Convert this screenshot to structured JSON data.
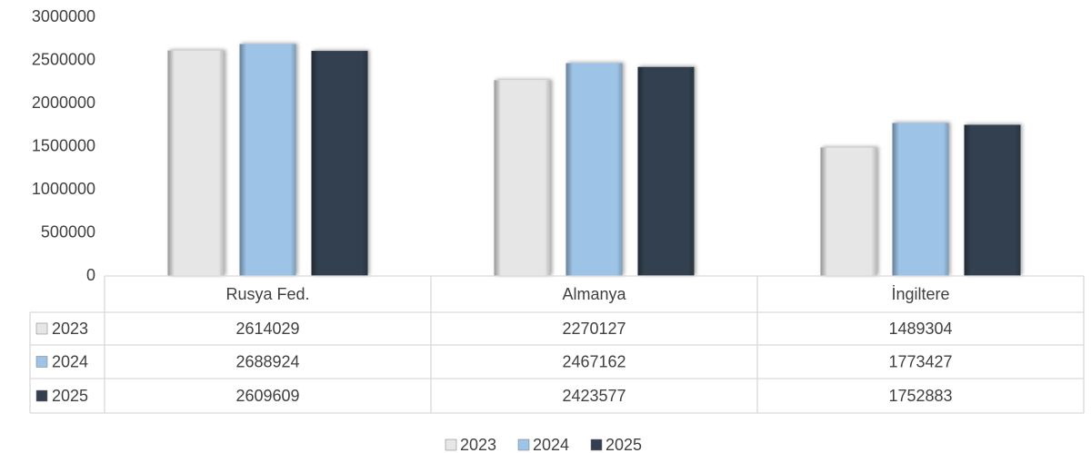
{
  "chart_data": {
    "type": "bar",
    "categories": [
      "Rusya Fed.",
      "Almanya",
      "İngiltere"
    ],
    "series": [
      {
        "name": "2023",
        "color": "#e6e6e6",
        "values": [
          2614029,
          2270127,
          1489304
        ]
      },
      {
        "name": "2024",
        "color": "#9dc3e6",
        "values": [
          2688924,
          2467162,
          1773427
        ]
      },
      {
        "name": "2025",
        "color": "#333f50",
        "values": [
          2609609,
          2423577,
          1752883
        ]
      }
    ],
    "ylim": [
      0,
      3000000
    ],
    "yticks": [
      0,
      500000,
      1000000,
      1500000,
      2000000,
      2500000,
      3000000
    ],
    "data_table": true,
    "legend": "bottom"
  }
}
